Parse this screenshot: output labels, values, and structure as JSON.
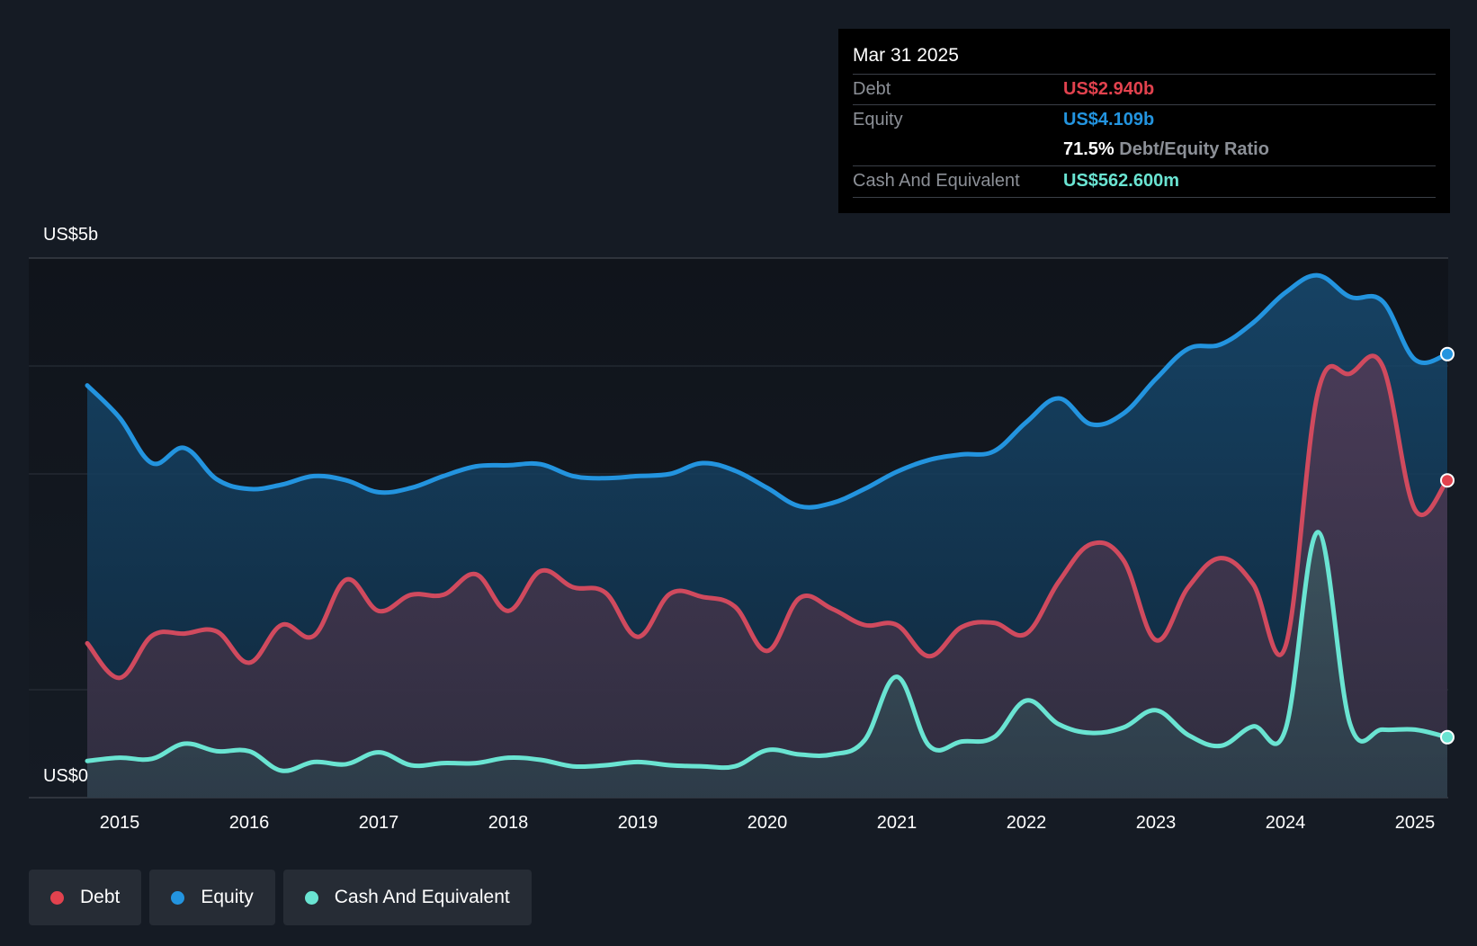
{
  "tooltip": {
    "date": "Mar 31 2025",
    "debt_label": "Debt",
    "debt_value": "US$2.940b",
    "equity_label": "Equity",
    "equity_value": "US$4.109b",
    "ratio_value": "71.5%",
    "ratio_label": "Debt/Equity Ratio",
    "cash_label": "Cash And Equivalent",
    "cash_value": "US$562.600m"
  },
  "legend": {
    "debt": "Debt",
    "equity": "Equity",
    "cash": "Cash And Equivalent"
  },
  "colors": {
    "background": "#151b24",
    "debt": "#e2424e",
    "equity": "#2394df",
    "cash": "#6ae4d2"
  },
  "chart_data": {
    "type": "area",
    "y_max_label": "US$5b",
    "y_min_label": "US$0",
    "ylim": [
      0,
      5
    ],
    "xlim": [
      2014.55,
      2025.25
    ],
    "x_ticks": [
      "2015",
      "2016",
      "2017",
      "2018",
      "2019",
      "2020",
      "2021",
      "2022",
      "2023",
      "2024",
      "2025"
    ],
    "series": [
      {
        "name": "Equity",
        "points": [
          [
            2014.75,
            3.82
          ],
          [
            2015.0,
            3.52
          ],
          [
            2015.25,
            3.1
          ],
          [
            2015.5,
            3.24
          ],
          [
            2015.75,
            2.95
          ],
          [
            2016.0,
            2.86
          ],
          [
            2016.25,
            2.9
          ],
          [
            2016.5,
            2.98
          ],
          [
            2016.75,
            2.94
          ],
          [
            2017.0,
            2.83
          ],
          [
            2017.25,
            2.87
          ],
          [
            2017.5,
            2.98
          ],
          [
            2017.75,
            3.07
          ],
          [
            2018.0,
            3.08
          ],
          [
            2018.25,
            3.09
          ],
          [
            2018.5,
            2.98
          ],
          [
            2018.75,
            2.96
          ],
          [
            2019.0,
            2.98
          ],
          [
            2019.25,
            3.0
          ],
          [
            2019.5,
            3.1
          ],
          [
            2019.75,
            3.03
          ],
          [
            2020.0,
            2.87
          ],
          [
            2020.25,
            2.7
          ],
          [
            2020.5,
            2.73
          ],
          [
            2020.75,
            2.86
          ],
          [
            2021.0,
            3.02
          ],
          [
            2021.25,
            3.13
          ],
          [
            2021.5,
            3.18
          ],
          [
            2021.75,
            3.21
          ],
          [
            2022.0,
            3.48
          ],
          [
            2022.25,
            3.7
          ],
          [
            2022.5,
            3.46
          ],
          [
            2022.75,
            3.56
          ],
          [
            2023.0,
            3.88
          ],
          [
            2023.25,
            4.16
          ],
          [
            2023.5,
            4.2
          ],
          [
            2023.75,
            4.4
          ],
          [
            2024.0,
            4.68
          ],
          [
            2024.25,
            4.84
          ],
          [
            2024.5,
            4.64
          ],
          [
            2024.75,
            4.6
          ],
          [
            2025.0,
            4.06
          ],
          [
            2025.25,
            4.11
          ]
        ]
      },
      {
        "name": "Debt",
        "points": [
          [
            2014.75,
            1.43
          ],
          [
            2015.0,
            1.11
          ],
          [
            2015.25,
            1.5
          ],
          [
            2015.5,
            1.52
          ],
          [
            2015.75,
            1.54
          ],
          [
            2016.0,
            1.25
          ],
          [
            2016.25,
            1.6
          ],
          [
            2016.5,
            1.5
          ],
          [
            2016.75,
            2.02
          ],
          [
            2017.0,
            1.73
          ],
          [
            2017.25,
            1.88
          ],
          [
            2017.5,
            1.88
          ],
          [
            2017.75,
            2.07
          ],
          [
            2018.0,
            1.73
          ],
          [
            2018.25,
            2.1
          ],
          [
            2018.5,
            1.95
          ],
          [
            2018.75,
            1.9
          ],
          [
            2019.0,
            1.49
          ],
          [
            2019.25,
            1.89
          ],
          [
            2019.5,
            1.86
          ],
          [
            2019.75,
            1.77
          ],
          [
            2020.0,
            1.36
          ],
          [
            2020.25,
            1.85
          ],
          [
            2020.5,
            1.75
          ],
          [
            2020.75,
            1.6
          ],
          [
            2021.0,
            1.6
          ],
          [
            2021.25,
            1.31
          ],
          [
            2021.5,
            1.58
          ],
          [
            2021.75,
            1.62
          ],
          [
            2022.0,
            1.52
          ],
          [
            2022.25,
            2.0
          ],
          [
            2022.5,
            2.35
          ],
          [
            2022.75,
            2.2
          ],
          [
            2023.0,
            1.46
          ],
          [
            2023.25,
            1.95
          ],
          [
            2023.5,
            2.22
          ],
          [
            2023.75,
            1.98
          ],
          [
            2024.0,
            1.4
          ],
          [
            2024.25,
            3.75
          ],
          [
            2024.5,
            3.93
          ],
          [
            2024.75,
            4.0
          ],
          [
            2025.0,
            2.67
          ],
          [
            2025.25,
            2.94
          ]
        ]
      },
      {
        "name": "Cash And Equivalent",
        "points": [
          [
            2014.75,
            0.34
          ],
          [
            2015.0,
            0.37
          ],
          [
            2015.25,
            0.36
          ],
          [
            2015.5,
            0.5
          ],
          [
            2015.75,
            0.43
          ],
          [
            2016.0,
            0.43
          ],
          [
            2016.25,
            0.25
          ],
          [
            2016.5,
            0.33
          ],
          [
            2016.75,
            0.31
          ],
          [
            2017.0,
            0.42
          ],
          [
            2017.25,
            0.3
          ],
          [
            2017.5,
            0.32
          ],
          [
            2017.75,
            0.32
          ],
          [
            2018.0,
            0.37
          ],
          [
            2018.25,
            0.35
          ],
          [
            2018.5,
            0.29
          ],
          [
            2018.75,
            0.3
          ],
          [
            2019.0,
            0.33
          ],
          [
            2019.25,
            0.3
          ],
          [
            2019.5,
            0.29
          ],
          [
            2019.75,
            0.29
          ],
          [
            2020.0,
            0.44
          ],
          [
            2020.25,
            0.4
          ],
          [
            2020.5,
            0.4
          ],
          [
            2020.75,
            0.53
          ],
          [
            2021.0,
            1.12
          ],
          [
            2021.25,
            0.48
          ],
          [
            2021.5,
            0.52
          ],
          [
            2021.75,
            0.56
          ],
          [
            2022.0,
            0.9
          ],
          [
            2022.25,
            0.68
          ],
          [
            2022.5,
            0.6
          ],
          [
            2022.75,
            0.65
          ],
          [
            2023.0,
            0.81
          ],
          [
            2023.25,
            0.58
          ],
          [
            2023.5,
            0.48
          ],
          [
            2023.75,
            0.66
          ],
          [
            2024.0,
            0.63
          ],
          [
            2024.25,
            2.46
          ],
          [
            2024.5,
            0.68
          ],
          [
            2024.75,
            0.63
          ],
          [
            2025.0,
            0.63
          ],
          [
            2025.25,
            0.56
          ]
        ]
      }
    ]
  }
}
